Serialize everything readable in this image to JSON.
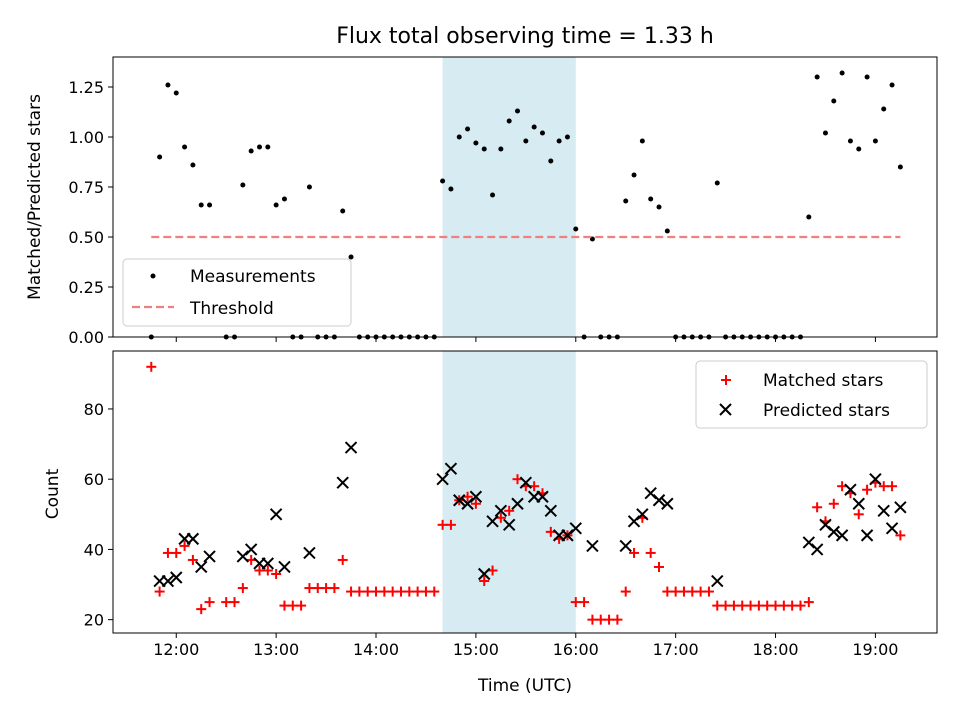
{
  "chart_data": [
    {
      "type": "scatter",
      "title": "Flux total observing time = 1.33 h",
      "xlabel": "",
      "ylabel": "Matched/Predicted stars",
      "xlim": [
        "11:22",
        "19:37"
      ],
      "ylim": [
        0,
        1.4
      ],
      "x_ticks": [
        "12:00",
        "13:00",
        "14:00",
        "15:00",
        "16:00",
        "17:00",
        "18:00",
        "19:00"
      ],
      "y_ticks": [
        "0.00",
        "0.25",
        "0.50",
        "0.75",
        "1.00",
        "1.25"
      ],
      "highlight_span": [
        "14:40",
        "16:00"
      ],
      "highlight_color": "#add8e6",
      "legend_position": "lower-left",
      "series": [
        {
          "name": "Measurements",
          "marker": "dot",
          "color": "#000000",
          "points": [
            [
              "11:45",
              0.0
            ],
            [
              "11:50",
              0.9
            ],
            [
              "11:55",
              1.26
            ],
            [
              "12:00",
              1.22
            ],
            [
              "12:05",
              0.95
            ],
            [
              "12:10",
              0.86
            ],
            [
              "12:15",
              0.66
            ],
            [
              "12:20",
              0.66
            ],
            [
              "12:30",
              0.0
            ],
            [
              "12:35",
              0.0
            ],
            [
              "12:40",
              0.76
            ],
            [
              "12:45",
              0.93
            ],
            [
              "12:50",
              0.95
            ],
            [
              "12:55",
              0.95
            ],
            [
              "13:00",
              0.66
            ],
            [
              "13:05",
              0.69
            ],
            [
              "13:10",
              0.0
            ],
            [
              "13:15",
              0.0
            ],
            [
              "13:20",
              0.75
            ],
            [
              "13:25",
              0.0
            ],
            [
              "13:30",
              0.0
            ],
            [
              "13:35",
              0.0
            ],
            [
              "13:40",
              0.63
            ],
            [
              "13:45",
              0.4
            ],
            [
              "13:50",
              0.0
            ],
            [
              "13:55",
              0.0
            ],
            [
              "14:00",
              0.0
            ],
            [
              "14:05",
              0.0
            ],
            [
              "14:10",
              0.0
            ],
            [
              "14:15",
              0.0
            ],
            [
              "14:20",
              0.0
            ],
            [
              "14:25",
              0.0
            ],
            [
              "14:30",
              0.0
            ],
            [
              "14:35",
              0.0
            ],
            [
              "14:40",
              0.78
            ],
            [
              "14:45",
              0.74
            ],
            [
              "14:50",
              1.0
            ],
            [
              "14:55",
              1.04
            ],
            [
              "15:00",
              0.97
            ],
            [
              "15:05",
              0.94
            ],
            [
              "15:10",
              0.71
            ],
            [
              "15:15",
              0.94
            ],
            [
              "15:20",
              1.08
            ],
            [
              "15:25",
              1.13
            ],
            [
              "15:30",
              0.98
            ],
            [
              "15:35",
              1.05
            ],
            [
              "15:40",
              1.02
            ],
            [
              "15:45",
              0.88
            ],
            [
              "15:50",
              0.98
            ],
            [
              "15:55",
              1.0
            ],
            [
              "16:00",
              0.54
            ],
            [
              "16:05",
              0.0
            ],
            [
              "16:10",
              0.49
            ],
            [
              "16:15",
              0.0
            ],
            [
              "16:20",
              0.0
            ],
            [
              "16:25",
              0.0
            ],
            [
              "16:30",
              0.68
            ],
            [
              "16:35",
              0.81
            ],
            [
              "16:40",
              0.98
            ],
            [
              "16:45",
              0.69
            ],
            [
              "16:50",
              0.65
            ],
            [
              "16:55",
              0.53
            ],
            [
              "17:00",
              0.0
            ],
            [
              "17:05",
              0.0
            ],
            [
              "17:10",
              0.0
            ],
            [
              "17:15",
              0.0
            ],
            [
              "17:20",
              0.0
            ],
            [
              "17:25",
              0.77
            ],
            [
              "17:30",
              0.0
            ],
            [
              "17:35",
              0.0
            ],
            [
              "17:40",
              0.0
            ],
            [
              "17:45",
              0.0
            ],
            [
              "17:50",
              0.0
            ],
            [
              "17:55",
              0.0
            ],
            [
              "18:00",
              0.0
            ],
            [
              "18:05",
              0.0
            ],
            [
              "18:10",
              0.0
            ],
            [
              "18:15",
              0.0
            ],
            [
              "18:20",
              0.6
            ],
            [
              "18:25",
              1.3
            ],
            [
              "18:30",
              1.02
            ],
            [
              "18:35",
              1.18
            ],
            [
              "18:40",
              1.32
            ],
            [
              "18:45",
              0.98
            ],
            [
              "18:50",
              0.94
            ],
            [
              "18:55",
              1.3
            ],
            [
              "19:00",
              0.98
            ],
            [
              "19:05",
              1.14
            ],
            [
              "19:10",
              1.26
            ],
            [
              "19:15",
              0.85
            ]
          ]
        },
        {
          "name": "Threshold",
          "type": "line",
          "style": "dashed",
          "color": "#f08080",
          "points": [
            [
              "11:45",
              0.5
            ],
            [
              "19:15",
              0.5
            ]
          ]
        }
      ]
    },
    {
      "type": "scatter",
      "title": "",
      "xlabel": "Time (UTC)",
      "ylabel": "Count",
      "xlim": [
        "11:22",
        "19:37"
      ],
      "ylim": [
        16.2,
        96.5
      ],
      "x_ticks": [
        "12:00",
        "13:00",
        "14:00",
        "15:00",
        "16:00",
        "17:00",
        "18:00",
        "19:00"
      ],
      "y_ticks": [
        "20",
        "40",
        "60",
        "80"
      ],
      "highlight_span": [
        "14:40",
        "16:00"
      ],
      "highlight_color": "#add8e6",
      "legend_position": "top-right",
      "series": [
        {
          "name": "Matched stars",
          "marker": "plus",
          "color": "#ff0000",
          "points": [
            [
              "11:45",
              92
            ],
            [
              "11:50",
              28
            ],
            [
              "11:55",
              39
            ],
            [
              "12:00",
              39
            ],
            [
              "12:05",
              41
            ],
            [
              "12:10",
              37
            ],
            [
              "12:15",
              23
            ],
            [
              "12:20",
              25
            ],
            [
              "12:30",
              25
            ],
            [
              "12:35",
              25
            ],
            [
              "12:40",
              29
            ],
            [
              "12:45",
              37
            ],
            [
              "12:50",
              34
            ],
            [
              "12:55",
              34
            ],
            [
              "13:00",
              33
            ],
            [
              "13:05",
              24
            ],
            [
              "13:10",
              24
            ],
            [
              "13:15",
              24
            ],
            [
              "13:20",
              29
            ],
            [
              "13:25",
              29
            ],
            [
              "13:30",
              29
            ],
            [
              "13:35",
              29
            ],
            [
              "13:40",
              37
            ],
            [
              "13:45",
              28
            ],
            [
              "13:50",
              28
            ],
            [
              "13:55",
              28
            ],
            [
              "14:00",
              28
            ],
            [
              "14:05",
              28
            ],
            [
              "14:10",
              28
            ],
            [
              "14:15",
              28
            ],
            [
              "14:20",
              28
            ],
            [
              "14:25",
              28
            ],
            [
              "14:30",
              28
            ],
            [
              "14:35",
              28
            ],
            [
              "14:40",
              47
            ],
            [
              "14:45",
              47
            ],
            [
              "14:50",
              54
            ],
            [
              "14:55",
              55
            ],
            [
              "15:00",
              53
            ],
            [
              "15:05",
              31
            ],
            [
              "15:10",
              34
            ],
            [
              "15:15",
              49
            ],
            [
              "15:20",
              51
            ],
            [
              "15:25",
              60
            ],
            [
              "15:30",
              58
            ],
            [
              "15:35",
              58
            ],
            [
              "15:40",
              56
            ],
            [
              "15:45",
              45
            ],
            [
              "15:50",
              43
            ],
            [
              "15:55",
              44
            ],
            [
              "16:00",
              25
            ],
            [
              "16:05",
              25
            ],
            [
              "16:10",
              20
            ],
            [
              "16:15",
              20
            ],
            [
              "16:20",
              20
            ],
            [
              "16:25",
              20
            ],
            [
              "16:30",
              28
            ],
            [
              "16:35",
              39
            ],
            [
              "16:40",
              49
            ],
            [
              "16:45",
              39
            ],
            [
              "16:50",
              35
            ],
            [
              "16:55",
              28
            ],
            [
              "17:00",
              28
            ],
            [
              "17:05",
              28
            ],
            [
              "17:10",
              28
            ],
            [
              "17:15",
              28
            ],
            [
              "17:20",
              28
            ],
            [
              "17:25",
              24
            ],
            [
              "17:30",
              24
            ],
            [
              "17:35",
              24
            ],
            [
              "17:40",
              24
            ],
            [
              "17:45",
              24
            ],
            [
              "17:50",
              24
            ],
            [
              "17:55",
              24
            ],
            [
              "18:00",
              24
            ],
            [
              "18:05",
              24
            ],
            [
              "18:10",
              24
            ],
            [
              "18:15",
              24
            ],
            [
              "18:20",
              25
            ],
            [
              "18:25",
              52
            ],
            [
              "18:30",
              48
            ],
            [
              "18:35",
              53
            ],
            [
              "18:40",
              58
            ],
            [
              "18:45",
              56
            ],
            [
              "18:50",
              50
            ],
            [
              "18:55",
              57
            ],
            [
              "19:00",
              59
            ],
            [
              "19:05",
              58
            ],
            [
              "19:10",
              58
            ],
            [
              "19:15",
              44
            ]
          ]
        },
        {
          "name": "Predicted stars",
          "marker": "x",
          "color": "#000000",
          "points": [
            [
              "11:50",
              31
            ],
            [
              "11:55",
              31
            ],
            [
              "12:00",
              32
            ],
            [
              "12:05",
              43
            ],
            [
              "12:10",
              43
            ],
            [
              "12:15",
              35
            ],
            [
              "12:20",
              38
            ],
            [
              "12:40",
              38
            ],
            [
              "12:45",
              40
            ],
            [
              "12:50",
              36
            ],
            [
              "12:55",
              36
            ],
            [
              "13:00",
              50
            ],
            [
              "13:05",
              35
            ],
            [
              "13:20",
              39
            ],
            [
              "13:40",
              59
            ],
            [
              "13:45",
              69
            ],
            [
              "14:40",
              60
            ],
            [
              "14:45",
              63
            ],
            [
              "14:50",
              54
            ],
            [
              "14:55",
              53
            ],
            [
              "15:00",
              55
            ],
            [
              "15:05",
              33
            ],
            [
              "15:10",
              48
            ],
            [
              "15:15",
              51
            ],
            [
              "15:20",
              47
            ],
            [
              "15:25",
              53
            ],
            [
              "15:30",
              59
            ],
            [
              "15:35",
              55
            ],
            [
              "15:40",
              55
            ],
            [
              "15:45",
              51
            ],
            [
              "15:50",
              44
            ],
            [
              "15:55",
              44
            ],
            [
              "16:00",
              46
            ],
            [
              "16:10",
              41
            ],
            [
              "16:30",
              41
            ],
            [
              "16:35",
              48
            ],
            [
              "16:40",
              50
            ],
            [
              "16:45",
              56
            ],
            [
              "16:50",
              54
            ],
            [
              "16:55",
              53
            ],
            [
              "17:25",
              31
            ],
            [
              "18:20",
              42
            ],
            [
              "18:25",
              40
            ],
            [
              "18:30",
              47
            ],
            [
              "18:35",
              45
            ],
            [
              "18:40",
              44
            ],
            [
              "18:45",
              57
            ],
            [
              "18:50",
              53
            ],
            [
              "18:55",
              44
            ],
            [
              "19:00",
              60
            ],
            [
              "19:05",
              51
            ],
            [
              "19:10",
              46
            ],
            [
              "19:15",
              52
            ]
          ]
        }
      ]
    }
  ]
}
